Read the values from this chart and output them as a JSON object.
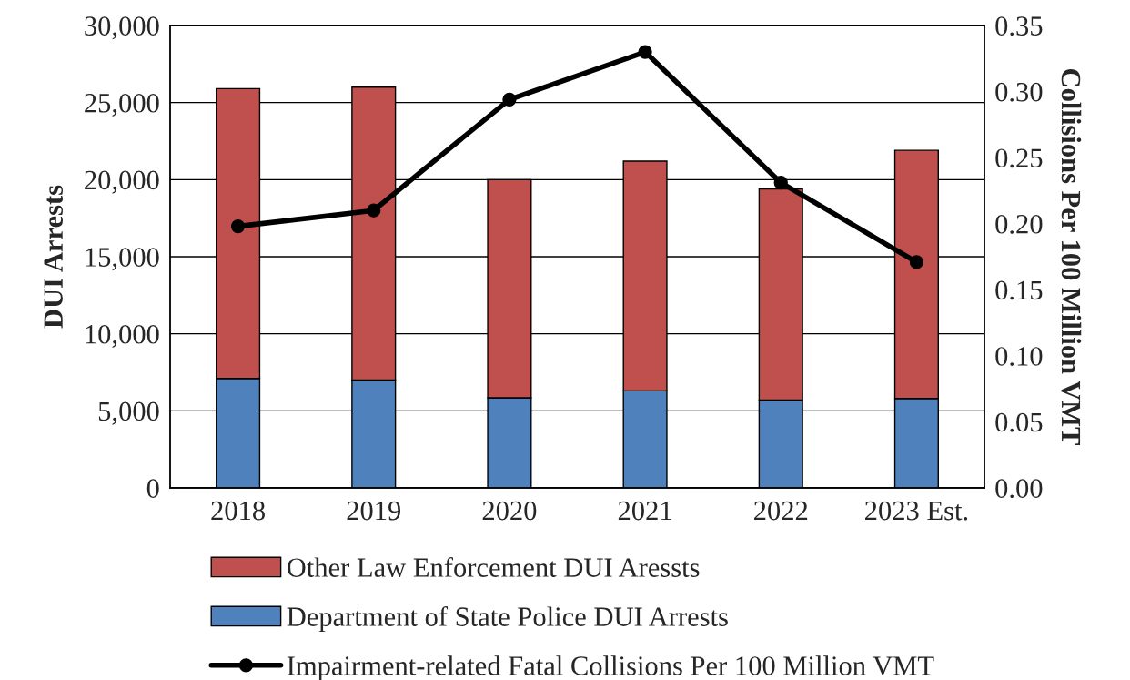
{
  "chart_data": {
    "type": "bar",
    "stacked": true,
    "ylabel": "DUI Arrests",
    "y2label": "Collisions Per 100 Million VMT",
    "categories": [
      "2018",
      "2019",
      "2020",
      "2021",
      "2022",
      "2023 Est."
    ],
    "series": [
      {
        "name": "Department of State Police DUI Arrests",
        "color": "#4f81bd",
        "values": [
          7100,
          7000,
          5850,
          6300,
          5700,
          5800
        ]
      },
      {
        "name": "Other Law Enforcement DUI Aressts",
        "color": "#c0504d",
        "values": [
          18800,
          19000,
          14150,
          14900,
          13700,
          16100
        ]
      },
      {
        "name": "Impairment-related Fatal Collisions Per 100 Million VMT",
        "type": "line",
        "axis": "y2",
        "color": "#000000",
        "values": [
          0.198,
          0.21,
          0.294,
          0.33,
          0.231,
          0.171
        ]
      }
    ],
    "ylim": [
      0,
      30000
    ],
    "yticks": [
      {
        "value": 0,
        "label": "0"
      },
      {
        "value": 5000,
        "label": "5,000"
      },
      {
        "value": 10000,
        "label": "10,000"
      },
      {
        "value": 15000,
        "label": "15,000"
      },
      {
        "value": 20000,
        "label": "20,000"
      },
      {
        "value": 25000,
        "label": "25,000"
      },
      {
        "value": 30000,
        "label": "30,000"
      }
    ],
    "y2lim": [
      0,
      0.35
    ],
    "y2ticks": [
      {
        "value": 0,
        "label": "0.00"
      },
      {
        "value": 0.05,
        "label": "0.05"
      },
      {
        "value": 0.1,
        "label": "0.10"
      },
      {
        "value": 0.15,
        "label": "0.15"
      },
      {
        "value": 0.2,
        "label": "0.20"
      },
      {
        "value": 0.25,
        "label": "0.25"
      },
      {
        "value": 0.3,
        "label": "0.30"
      },
      {
        "value": 0.35,
        "label": "0.35"
      }
    ],
    "grid": "y",
    "legend": "bottom",
    "marker": "circle",
    "line_style": "solid"
  }
}
